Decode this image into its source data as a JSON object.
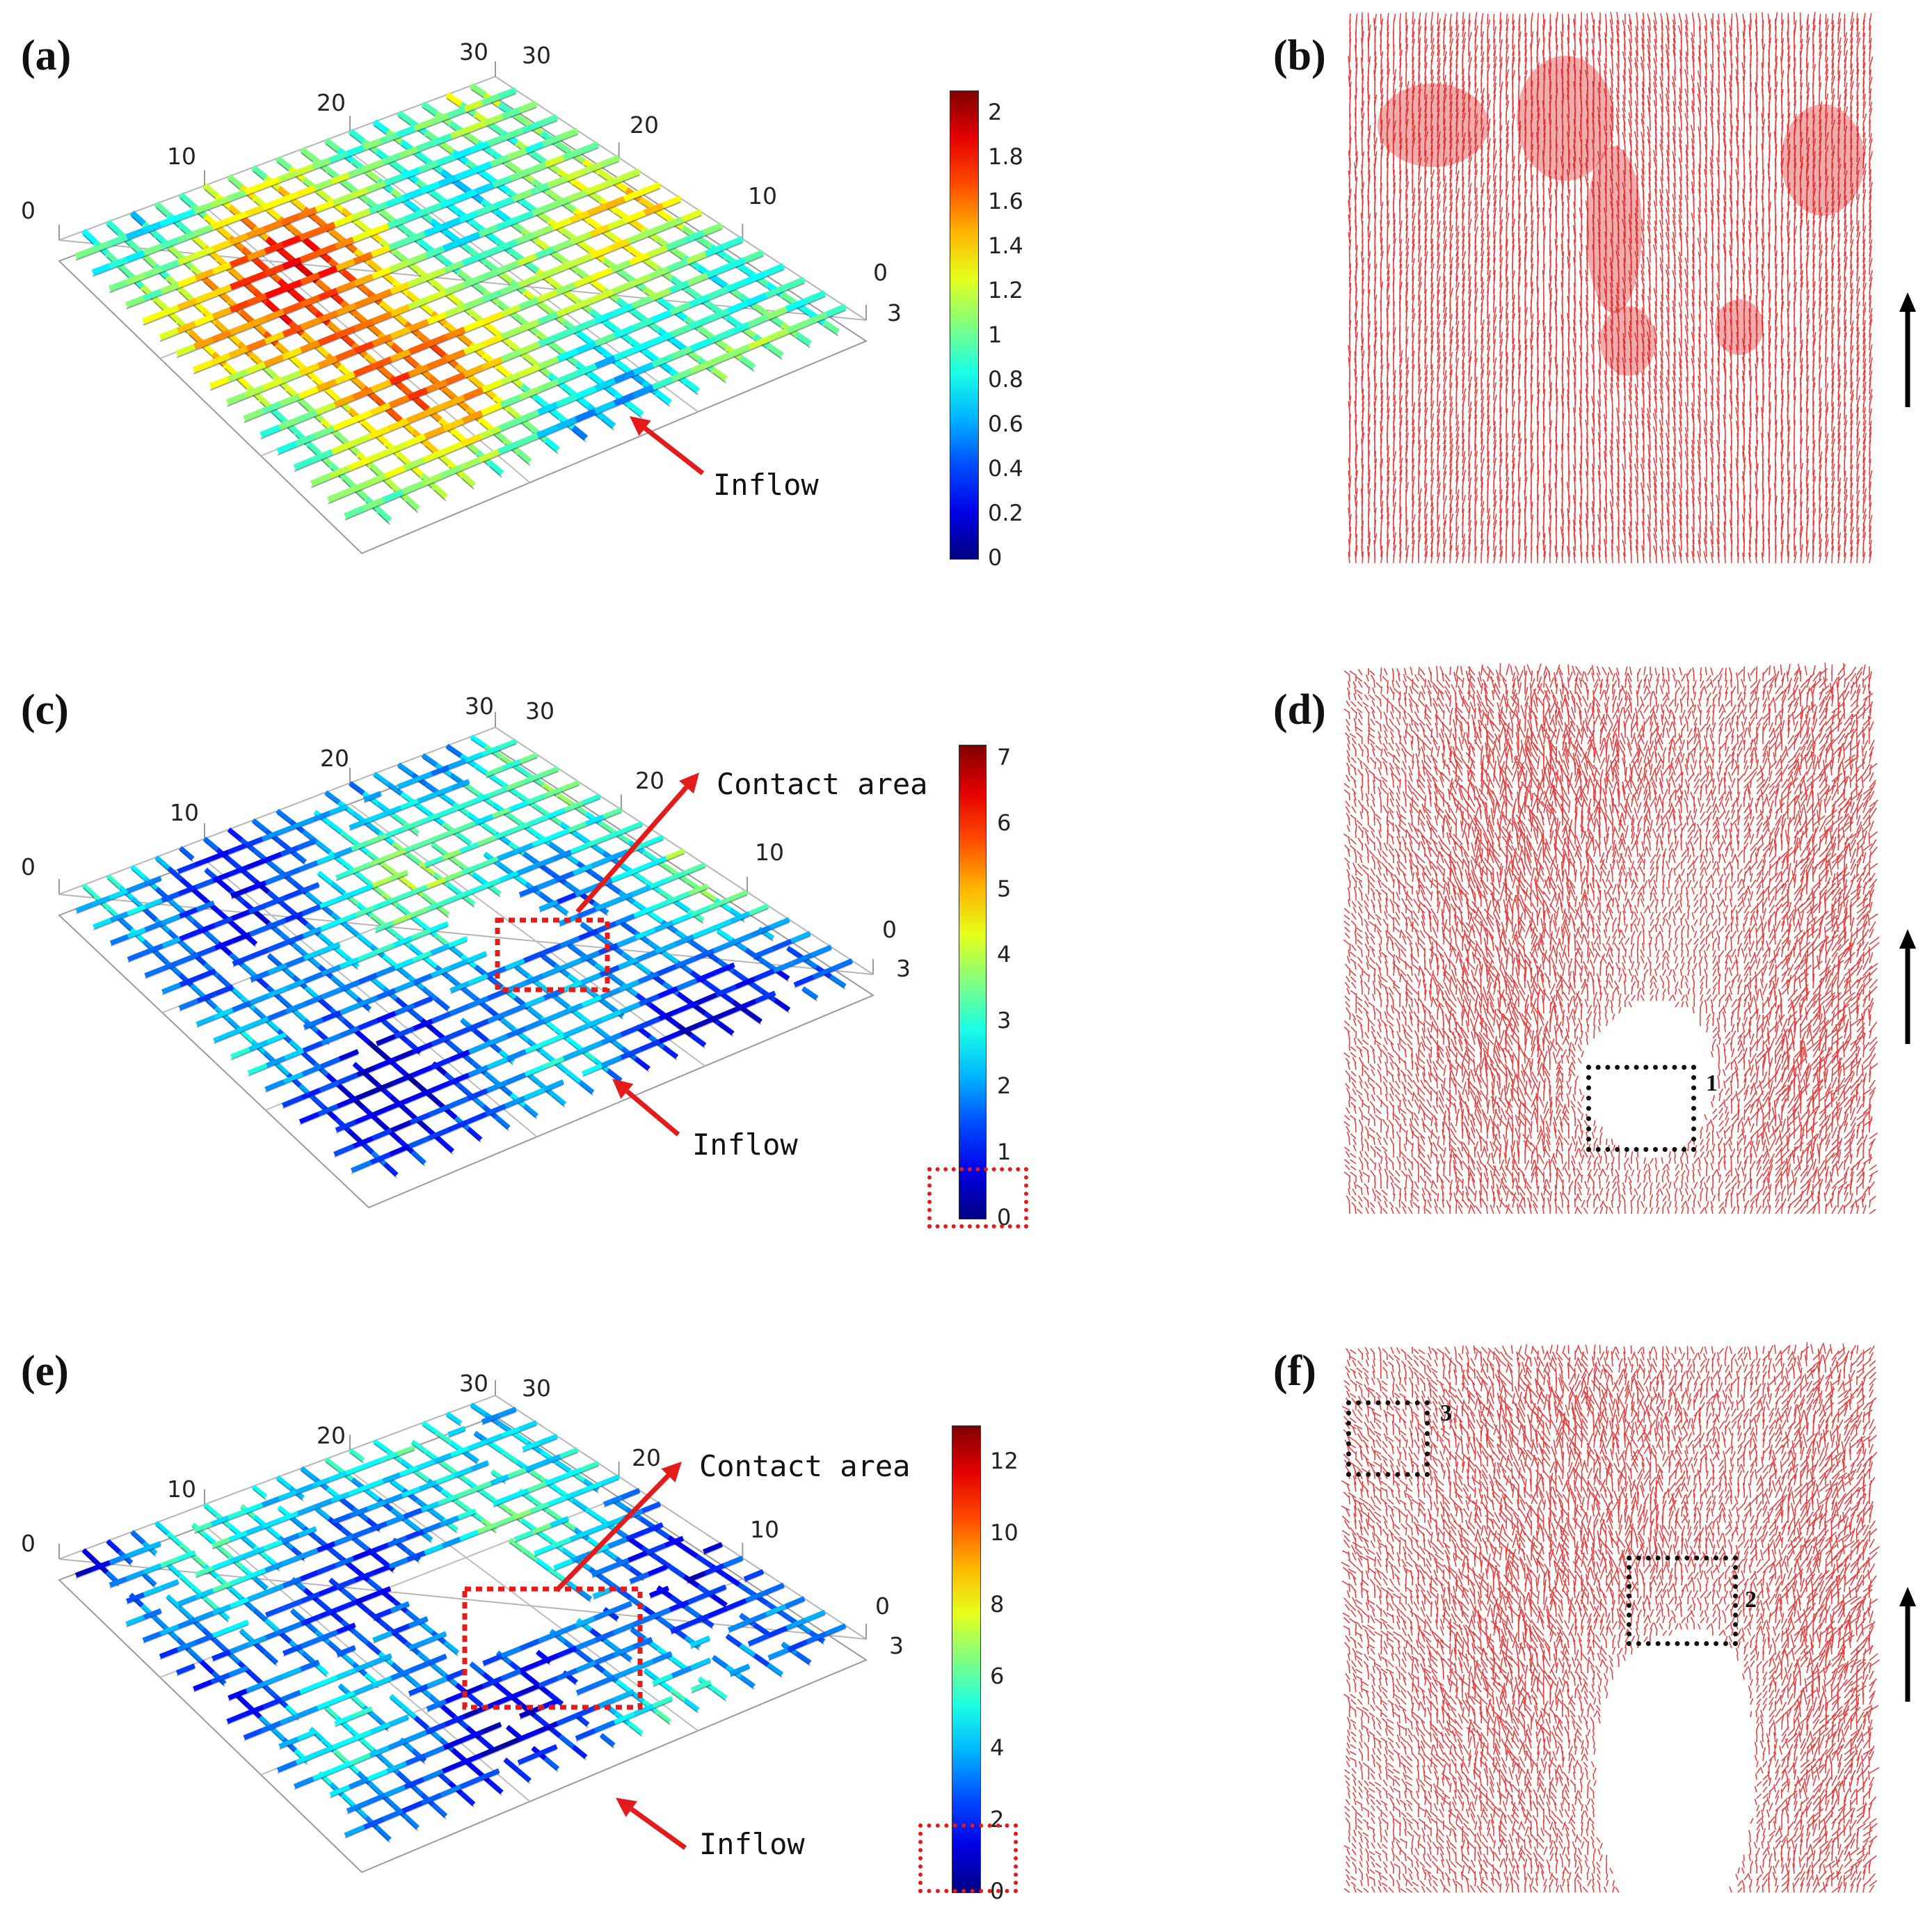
{
  "figure": {
    "panels": [
      {
        "id": "a",
        "label": "(a)",
        "axis_ticks": {
          "left_axis": [
            "0",
            "10",
            "20",
            "30"
          ],
          "right_axis": [
            "30",
            "20",
            "10",
            "0"
          ],
          "depth": "3"
        },
        "colorbar": {
          "min": 0,
          "max": 2.1,
          "ticks": [
            "2",
            "1.8",
            "1.6",
            "1.4",
            "1.2",
            "1",
            "0.8",
            "0.6",
            "0.4",
            "0.2",
            "0"
          ]
        },
        "annotations": [
          "Inflow"
        ],
        "zero_highlight": false
      },
      {
        "id": "c",
        "label": "(c)",
        "axis_ticks": {
          "left_axis": [
            "0",
            "10",
            "20",
            "30"
          ],
          "right_axis": [
            "30",
            "20",
            "10",
            "0"
          ],
          "depth": "3"
        },
        "colorbar": {
          "min": 0,
          "max": 7.2,
          "ticks": [
            "7",
            "6",
            "5",
            "4",
            "3",
            "2",
            "1",
            "0"
          ]
        },
        "annotations": [
          "Contact area",
          "Inflow"
        ],
        "zero_highlight": true
      },
      {
        "id": "e",
        "label": "(e)",
        "axis_ticks": {
          "left_axis": [
            "0",
            "10",
            "20",
            "30"
          ],
          "right_axis": [
            "30",
            "20",
            "10",
            "0"
          ],
          "depth": "3"
        },
        "colorbar": {
          "min": 0,
          "max": 13,
          "ticks": [
            "12",
            "10",
            "8",
            "6",
            "4",
            "2",
            "0"
          ]
        },
        "annotations": [
          "Contact area",
          "Inflow"
        ],
        "zero_highlight": true
      },
      {
        "id": "b",
        "label": "(b)",
        "boxes": []
      },
      {
        "id": "d",
        "label": "(d)",
        "boxes": [
          "1"
        ]
      },
      {
        "id": "f",
        "label": "(f)",
        "boxes": [
          "3",
          "2"
        ]
      }
    ]
  },
  "colors": {
    "vector_red": "#e02020",
    "annotation_arrow": "#e31b1b",
    "highlight_box": "#e31b1b",
    "black_box": "#111111",
    "grid_line": "#9a9a9a"
  }
}
